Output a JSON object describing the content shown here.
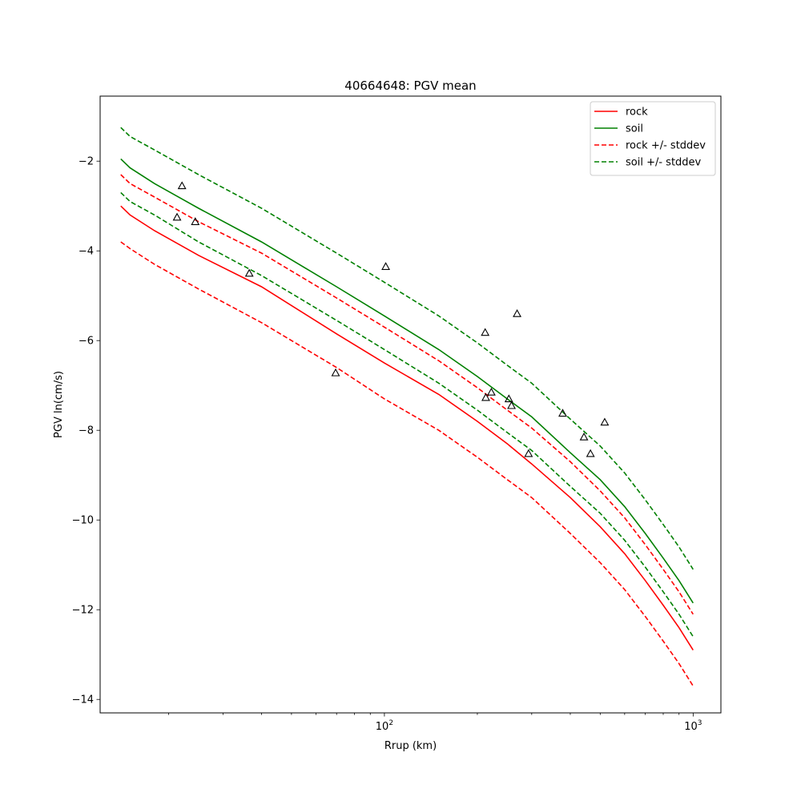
{
  "chart_data": {
    "type": "line",
    "title": "40664648: PGV mean",
    "xlabel": "Rrup (km)",
    "ylabel": "PGV ln(cm/s)",
    "xscale": "log",
    "xlim": [
      12,
      1230
    ],
    "ylim": [
      -14.3,
      -0.55
    ],
    "x_ticks": [
      {
        "value": 100,
        "base": "10",
        "exp": "2"
      },
      {
        "value": 1000,
        "base": "10",
        "exp": "3"
      }
    ],
    "y_ticks": [
      -2,
      -4,
      -6,
      -8,
      -10,
      -12,
      -14
    ],
    "x_minor_ticks": [
      20,
      30,
      40,
      50,
      60,
      70,
      80,
      90,
      200,
      300,
      400,
      500,
      600,
      700,
      800,
      900
    ],
    "grid": false,
    "legend_position": "top-right",
    "series": [
      {
        "name": "rock",
        "color": "#ff0000",
        "dashed": false,
        "x": [
          14,
          15,
          18,
          25,
          40,
          70,
          100,
          150,
          200,
          250,
          300,
          400,
          500,
          600,
          700,
          800,
          900,
          1000
        ],
        "y": [
          -3.0,
          -3.2,
          -3.55,
          -4.1,
          -4.8,
          -5.85,
          -6.5,
          -7.2,
          -7.8,
          -8.3,
          -8.75,
          -9.5,
          -10.15,
          -10.75,
          -11.35,
          -11.9,
          -12.4,
          -12.9
        ]
      },
      {
        "name": "soil",
        "color": "#008000",
        "dashed": false,
        "x": [
          14,
          15,
          18,
          25,
          40,
          70,
          100,
          150,
          200,
          250,
          300,
          400,
          500,
          600,
          700,
          800,
          900,
          1000
        ],
        "y": [
          -1.95,
          -2.15,
          -2.5,
          -3.05,
          -3.8,
          -4.8,
          -5.45,
          -6.2,
          -6.8,
          -7.3,
          -7.7,
          -8.5,
          -9.1,
          -9.7,
          -10.3,
          -10.85,
          -11.35,
          -11.85
        ]
      },
      {
        "name": "rock +/- stddev",
        "color": "#ff0000",
        "dashed": true,
        "x": [
          14,
          15,
          18,
          25,
          40,
          70,
          100,
          150,
          200,
          250,
          300,
          400,
          500,
          600,
          700,
          800,
          900,
          1000
        ],
        "y": [
          -2.3,
          -2.5,
          -2.8,
          -3.35,
          -4.05,
          -5.05,
          -5.7,
          -6.45,
          -7.05,
          -7.55,
          -7.95,
          -8.7,
          -9.35,
          -9.95,
          -10.55,
          -11.1,
          -11.6,
          -12.1
        ]
      },
      {
        "name": "",
        "color": "#ff0000",
        "dashed": true,
        "x": [
          14,
          15,
          18,
          25,
          40,
          70,
          100,
          150,
          200,
          250,
          300,
          400,
          500,
          600,
          700,
          800,
          900,
          1000
        ],
        "y": [
          -3.8,
          -3.95,
          -4.3,
          -4.85,
          -5.6,
          -6.6,
          -7.3,
          -8.0,
          -8.6,
          -9.1,
          -9.5,
          -10.3,
          -10.95,
          -11.55,
          -12.15,
          -12.7,
          -13.2,
          -13.7
        ]
      },
      {
        "name": "soil +/- stddev",
        "color": "#008000",
        "dashed": true,
        "x": [
          14,
          15,
          18,
          25,
          40,
          70,
          100,
          150,
          200,
          250,
          300,
          400,
          500,
          600,
          700,
          800,
          900,
          1000
        ],
        "y": [
          -1.25,
          -1.45,
          -1.75,
          -2.3,
          -3.05,
          -4.05,
          -4.7,
          -5.45,
          -6.05,
          -6.55,
          -6.95,
          -7.75,
          -8.35,
          -8.95,
          -9.55,
          -10.1,
          -10.6,
          -11.1
        ]
      },
      {
        "name": "",
        "color": "#008000",
        "dashed": true,
        "x": [
          14,
          15,
          18,
          25,
          40,
          70,
          100,
          150,
          200,
          250,
          300,
          400,
          500,
          600,
          700,
          800,
          900,
          1000
        ],
        "y": [
          -2.7,
          -2.9,
          -3.2,
          -3.8,
          -4.55,
          -5.55,
          -6.2,
          -6.95,
          -7.55,
          -8.05,
          -8.45,
          -9.25,
          -9.85,
          -10.45,
          -11.05,
          -11.6,
          -12.1,
          -12.6
        ]
      }
    ],
    "scatter": {
      "marker": "triangle",
      "color": "#000000",
      "points": [
        {
          "x": 22.1,
          "y": -2.55
        },
        {
          "x": 21.3,
          "y": -3.25
        },
        {
          "x": 24.4,
          "y": -3.35
        },
        {
          "x": 36.5,
          "y": -4.5
        },
        {
          "x": 69.5,
          "y": -6.72
        },
        {
          "x": 101,
          "y": -4.35
        },
        {
          "x": 212,
          "y": -5.82
        },
        {
          "x": 213,
          "y": -7.27
        },
        {
          "x": 222,
          "y": -7.15
        },
        {
          "x": 253,
          "y": -7.3
        },
        {
          "x": 258,
          "y": -7.45
        },
        {
          "x": 269,
          "y": -5.4
        },
        {
          "x": 293,
          "y": -8.52
        },
        {
          "x": 378,
          "y": -7.62
        },
        {
          "x": 443,
          "y": -8.15
        },
        {
          "x": 465,
          "y": -8.52
        },
        {
          "x": 517,
          "y": -7.82
        }
      ]
    }
  }
}
